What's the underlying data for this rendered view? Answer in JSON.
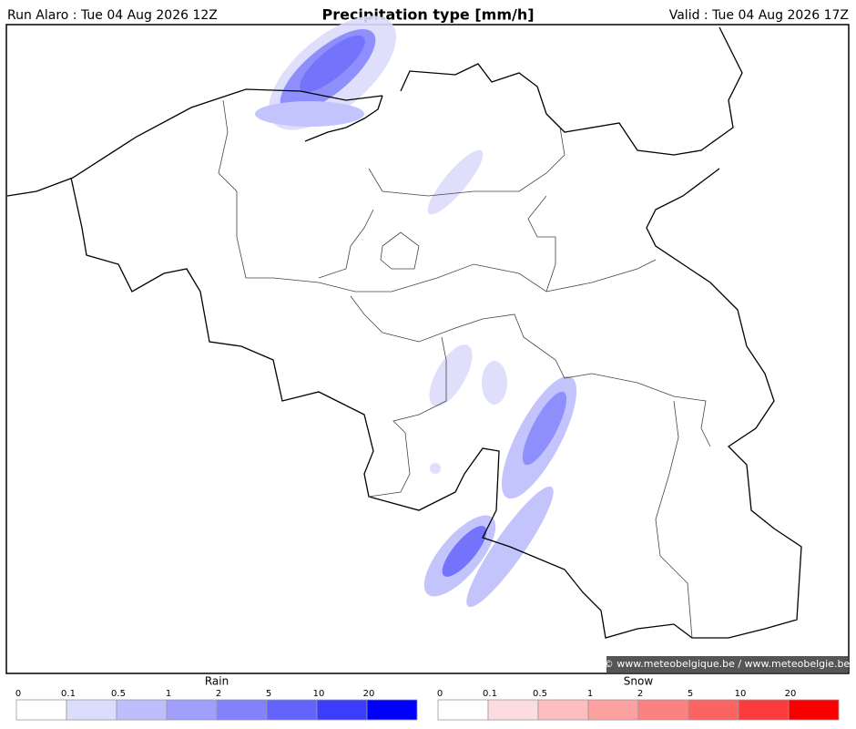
{
  "header": {
    "left": "Run Alaro : Tue 04 Aug 2026 12Z",
    "title": "Precipitation type [mm/h]",
    "right": "Valid : Tue 04 Aug 2026 17Z"
  },
  "credit": "© www.meteobelgique.be / www.meteobelgie.be",
  "legends": [
    {
      "title": "Rain",
      "ticks": [
        0,
        0.1,
        0.5,
        1,
        2,
        5,
        10,
        20
      ],
      "colors": [
        "#ffffff",
        "#dcdcfc",
        "#bebefc",
        "#a0a0fc",
        "#8282fc",
        "#6464fc",
        "#3c3cfc",
        "#0000fc"
      ]
    },
    {
      "title": "Snow",
      "ticks": [
        0,
        0.1,
        0.5,
        1,
        2,
        5,
        10,
        20
      ],
      "colors": [
        "#ffffff",
        "#fcdce0",
        "#fcbebe",
        "#fca0a0",
        "#fc8282",
        "#fc6464",
        "#fc3c3c",
        "#fc0000"
      ]
    }
  ]
}
